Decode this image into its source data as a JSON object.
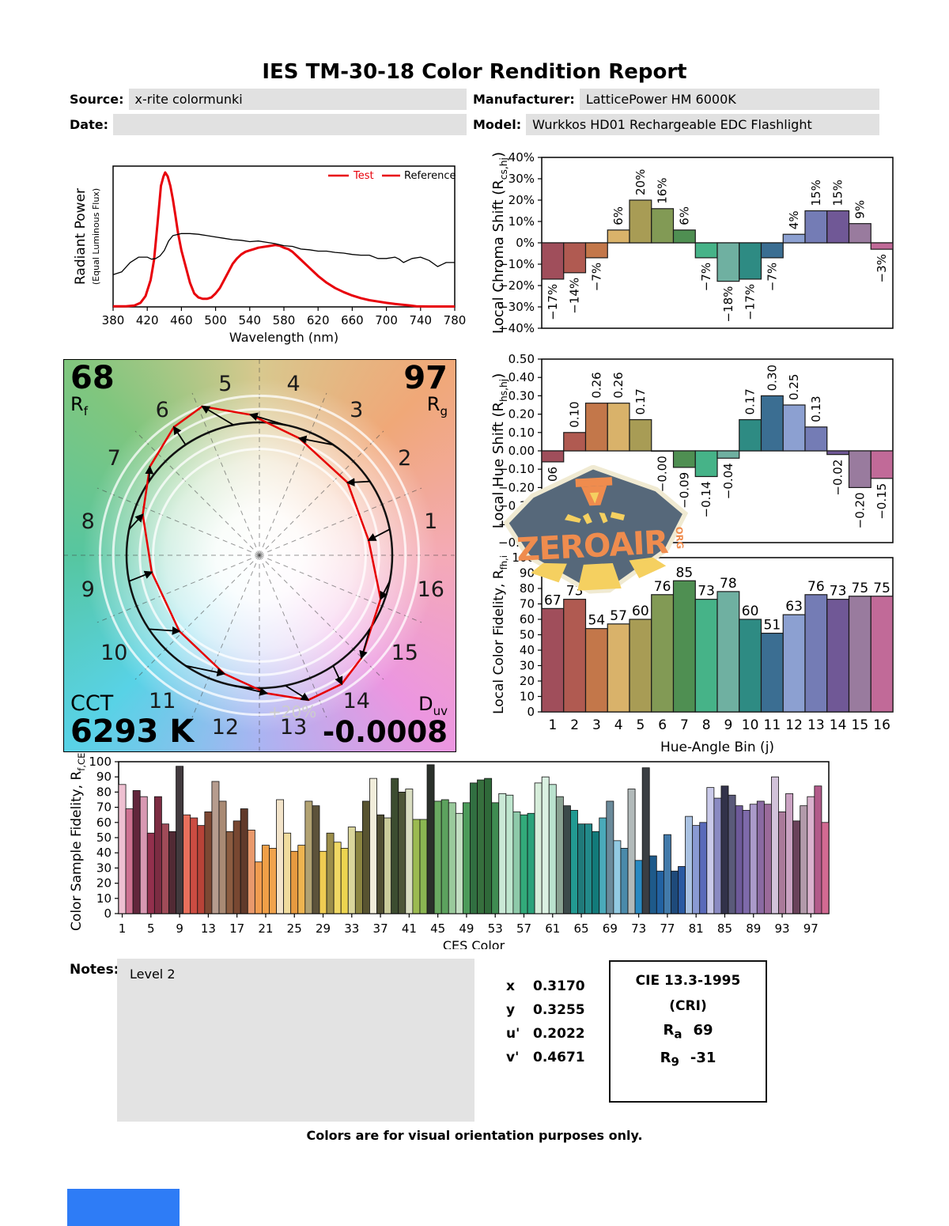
{
  "title": "IES TM-30-18 Color Rendition Report",
  "header": {
    "source_label": "Source:",
    "source_value": "x-rite colormunki",
    "date_label": "Date:",
    "date_value": "",
    "manufacturer_label": "Manufacturer:",
    "manufacturer_value": "LatticePower HM 6000K",
    "model_label": "Model:",
    "model_value": "Wurkkos HD01 Rechargeable EDC Flashlight"
  },
  "cvg": {
    "rf_value": "68",
    "rf_base": "R",
    "rf_sub": "f",
    "rg_value": "97",
    "rg_base": "R",
    "rg_sub": "g",
    "cct_label": "CCT",
    "cct_value": "6293 K",
    "duv_base": "D",
    "duv_sub": "uv",
    "duv_value": "-0.0008",
    "ring_label": "+20%",
    "bin_labels": [
      "1",
      "2",
      "3",
      "4",
      "5",
      "6",
      "7",
      "8",
      "9",
      "10",
      "11",
      "12",
      "13",
      "14",
      "15",
      "16"
    ]
  },
  "logo": {
    "name": "ZEROAIR",
    "tld": "ORG"
  },
  "notes": {
    "label": "Notes:",
    "value": "Level 2"
  },
  "chromaticity": {
    "rows": [
      {
        "label": "x",
        "value": "0.3170"
      },
      {
        "label": "y",
        "value": "0.3255"
      },
      {
        "label": "u'",
        "value": "0.2022"
      },
      {
        "label": "v'",
        "value": "0.4671"
      }
    ]
  },
  "cri_box": {
    "title": "CIE 13.3-1995",
    "subtitle": "(CRI)",
    "ra_base": "R",
    "ra_sub": "a",
    "ra_value": "69",
    "r9_base": "R",
    "r9_sub": "9",
    "r9_value": "-31"
  },
  "footer": "Colors are for visual orientation purposes only.",
  "blue_box_color": "#2e7cf6",
  "bin_colors": [
    "#a04e5b",
    "#b05a51",
    "#c3774a",
    "#d9b26a",
    "#a89c55",
    "#829a55",
    "#4f8f52",
    "#46b388",
    "#6fb0a1",
    "#2e8b83",
    "#3b6e92",
    "#8ca0d1",
    "#747cb5",
    "#705896",
    "#997b9e",
    "#c16a98"
  ],
  "chart_data": [
    {
      "type": "line",
      "name": "spectral-power-distribution",
      "xlabel": "Wavelength (nm)",
      "ylabel": "Radiant Power",
      "ylabel2": "(Equal Luminous Flux)",
      "xlim": [
        380,
        780
      ],
      "ylim": [
        0,
        1.05
      ],
      "x_ticks": [
        380,
        420,
        460,
        500,
        540,
        580,
        620,
        660,
        700,
        740,
        780
      ],
      "legend": [
        {
          "label": "Test",
          "text_color": "#e8000a",
          "line_color": "#e8000a"
        },
        {
          "label": "Reference",
          "text_color": "#000000",
          "line_color": "#e8000a"
        }
      ],
      "series": [
        {
          "name": "Test",
          "color": "#e8000a",
          "width": 3,
          "x": [
            380,
            395,
            405,
            412,
            418,
            424,
            428,
            432,
            436,
            439,
            441,
            444,
            447,
            450,
            453,
            456,
            460,
            465,
            470,
            475,
            480,
            485,
            490,
            495,
            500,
            505,
            510,
            515,
            520,
            525,
            530,
            535,
            540,
            545,
            550,
            555,
            560,
            565,
            570,
            575,
            580,
            585,
            590,
            595,
            600,
            610,
            620,
            630,
            640,
            650,
            660,
            670,
            680,
            690,
            700,
            710,
            720,
            728,
            735,
            750,
            780
          ],
          "y": [
            0.005,
            0.005,
            0.01,
            0.03,
            0.08,
            0.2,
            0.35,
            0.62,
            0.9,
            0.97,
            1.0,
            0.97,
            0.9,
            0.8,
            0.68,
            0.55,
            0.42,
            0.3,
            0.18,
            0.1,
            0.07,
            0.06,
            0.06,
            0.07,
            0.1,
            0.14,
            0.2,
            0.26,
            0.32,
            0.36,
            0.39,
            0.41,
            0.42,
            0.43,
            0.44,
            0.445,
            0.45,
            0.455,
            0.46,
            0.455,
            0.44,
            0.43,
            0.41,
            0.38,
            0.35,
            0.29,
            0.23,
            0.18,
            0.14,
            0.11,
            0.085,
            0.065,
            0.05,
            0.04,
            0.03,
            0.022,
            0.015,
            0.01,
            0.005,
            0.003,
            0.003
          ]
        },
        {
          "name": "Reference",
          "color": "#000000",
          "width": 1.3,
          "x": [
            380,
            390,
            400,
            410,
            420,
            425,
            430,
            435,
            440,
            445,
            450,
            460,
            470,
            480,
            490,
            500,
            510,
            520,
            530,
            540,
            550,
            560,
            570,
            580,
            590,
            600,
            610,
            620,
            630,
            640,
            650,
            660,
            670,
            680,
            690,
            700,
            710,
            715,
            720,
            730,
            740,
            750,
            760,
            765,
            770,
            780
          ],
          "y": [
            0.24,
            0.26,
            0.33,
            0.37,
            0.37,
            0.355,
            0.36,
            0.38,
            0.42,
            0.49,
            0.53,
            0.545,
            0.545,
            0.54,
            0.53,
            0.52,
            0.51,
            0.5,
            0.495,
            0.485,
            0.49,
            0.48,
            0.47,
            0.455,
            0.45,
            0.43,
            0.425,
            0.415,
            0.415,
            0.405,
            0.4,
            0.39,
            0.385,
            0.385,
            0.36,
            0.36,
            0.37,
            0.355,
            0.33,
            0.36,
            0.37,
            0.345,
            0.3,
            0.315,
            0.33,
            0.33
          ]
        }
      ]
    },
    {
      "type": "bar",
      "name": "local-chroma-shift",
      "axis_title": "Local Chroma Shift (R",
      "axis_sub": "cs,hj",
      "axis_close": ")",
      "ylim": [
        -40,
        40
      ],
      "ytick_step": 10,
      "yfmt": "percent",
      "categories": [
        1,
        2,
        3,
        4,
        5,
        6,
        7,
        8,
        9,
        10,
        11,
        12,
        13,
        14,
        15,
        16
      ],
      "values": [
        -17,
        -14,
        -7,
        6,
        20,
        16,
        6,
        -7,
        -18,
        -17,
        -7,
        4,
        15,
        15,
        9,
        -3
      ],
      "labels": [
        "−17%",
        "−14%",
        "−7%",
        "6%",
        "20%",
        "16%",
        "6%",
        "−7%",
        "−18%",
        "−17%",
        "−7%",
        "4%",
        "15%",
        "15%",
        "9%",
        "−3%"
      ]
    },
    {
      "type": "bar",
      "name": "local-hue-shift",
      "axis_title": "Local Hue Shift (R",
      "axis_sub": "hs,hj",
      "axis_close": ")",
      "ylim": [
        -0.5,
        0.5
      ],
      "ytick_step": 0.1,
      "yfmt": "decimal2",
      "categories": [
        1,
        2,
        3,
        4,
        5,
        6,
        7,
        8,
        9,
        10,
        11,
        12,
        13,
        14,
        15,
        16
      ],
      "values": [
        -0.06,
        0.1,
        0.26,
        0.26,
        0.17,
        -0.001,
        -0.09,
        -0.14,
        -0.04,
        0.17,
        0.3,
        0.25,
        0.13,
        -0.02,
        -0.2,
        -0.15
      ],
      "labels": [
        "−0.06",
        "0.10",
        "0.26",
        "0.26",
        "0.17",
        "−0.00",
        "−0.09",
        "−0.14",
        "−0.04",
        "0.17",
        "0.30",
        "0.25",
        "0.13",
        "−0.02",
        "−0.20",
        "−0.15"
      ]
    },
    {
      "type": "bar",
      "name": "local-color-fidelity",
      "axis_title": "Local Color Fidelity, R",
      "axis_sub": "fh,i",
      "axis_close": "",
      "xlabel": "Hue-Angle Bin (j)",
      "ylim": [
        0,
        100
      ],
      "ytick_step": 10,
      "categories": [
        "1",
        "2",
        "3",
        "4",
        "5",
        "6",
        "7",
        "8",
        "9",
        "10",
        "11",
        "12",
        "13",
        "14",
        "15",
        "16"
      ],
      "values": [
        67,
        73,
        54,
        57,
        60,
        76,
        85,
        73,
        78,
        60,
        51,
        63,
        76,
        73,
        75,
        75
      ]
    },
    {
      "type": "bar",
      "name": "color-sample-fidelity",
      "axis_title": "Color Sample Fidelity, R",
      "axis_sub": "f,CESi",
      "axis_close": "",
      "xlabel": "CES Color",
      "ylim": [
        0,
        100
      ],
      "ytick_step": 10,
      "x_ticks": [
        1,
        5,
        9,
        13,
        17,
        21,
        25,
        29,
        33,
        37,
        41,
        45,
        49,
        53,
        57,
        61,
        65,
        69,
        73,
        77,
        81,
        85,
        89,
        93,
        97
      ],
      "values": [
        85,
        69,
        81,
        77,
        53,
        77,
        59,
        54,
        97,
        65,
        63,
        58,
        67,
        87,
        74,
        54,
        61,
        69,
        55,
        34,
        45,
        43,
        75,
        53,
        41,
        45,
        74,
        71,
        41,
        53,
        47,
        43,
        57,
        54,
        74,
        89,
        65,
        63,
        89,
        80,
        82,
        62,
        62,
        98,
        74,
        75,
        73,
        66,
        73,
        86,
        88,
        89,
        73,
        79,
        78,
        67,
        65,
        66,
        86,
        90,
        85,
        77,
        71,
        68,
        59,
        59,
        54,
        63,
        74,
        48,
        43,
        82,
        35,
        96,
        38,
        28,
        52,
        28,
        31,
        64,
        58,
        60,
        83,
        76,
        84,
        78,
        71,
        68,
        72,
        74,
        72,
        90,
        67,
        79,
        61,
        71,
        77,
        84,
        60
      ],
      "colors": [
        "#eec0d1",
        "#ce7291",
        "#62263c",
        "#d898b2",
        "#93304d",
        "#7c2c42",
        "#a04b58",
        "#512a34",
        "#423a3e",
        "#e9705c",
        "#cb4c42",
        "#b84338",
        "#7d4833",
        "#b69c8e",
        "#a98a74",
        "#8c5c40",
        "#784731",
        "#60392a",
        "#e9996c",
        "#f19c50",
        "#ef9f47",
        "#f0a34c",
        "#f3e4ca",
        "#f0dc9e",
        "#e79a40",
        "#eeb450",
        "#b2a272",
        "#5c523a",
        "#f0cc52",
        "#9c8e4a",
        "#f0d864",
        "#ecd450",
        "#dad69c",
        "#8c8642",
        "#575330",
        "#f1edda",
        "#504e32",
        "#cacb9a",
        "#3c4c30",
        "#4e5638",
        "#dadec2",
        "#9cba50",
        "#8ab652",
        "#2b312b",
        "#6aaa62",
        "#5ca25e",
        "#9aca9c",
        "#c2dec2",
        "#4c9a5a",
        "#316f41",
        "#366f3d",
        "#2f6939",
        "#3f8c52",
        "#cae9d6",
        "#bee6ce",
        "#8ecaaa",
        "#32aa7a",
        "#2aa27a",
        "#d6edda",
        "#daf1e2",
        "#bae2ce",
        "#8aa292",
        "#3c4a4a",
        "#229a92",
        "#207a7a",
        "#228a8a",
        "#127a7a",
        "#4aaaba",
        "#6a8a9a",
        "#92cae2",
        "#4a8aaa",
        "#b2baba",
        "#2a8ac2",
        "#3a3e42",
        "#1e5a8a",
        "#2262a2",
        "#427aaa",
        "#1e4a7a",
        "#2a5aa2",
        "#aac2e2",
        "#8a9ad2",
        "#5a6aba",
        "#cacaea",
        "#8a8ac2",
        "#32324a",
        "#5a5a7a",
        "#6e5a9a",
        "#7e6aaa",
        "#aa9aca",
        "#8a6aa2",
        "#9a6a9a",
        "#d2c2da",
        "#aa7a9a",
        "#caa2c2",
        "#6a425a",
        "#b29aaa",
        "#dab2ce",
        "#b25a8a",
        "#d26a92"
      ]
    }
  ]
}
